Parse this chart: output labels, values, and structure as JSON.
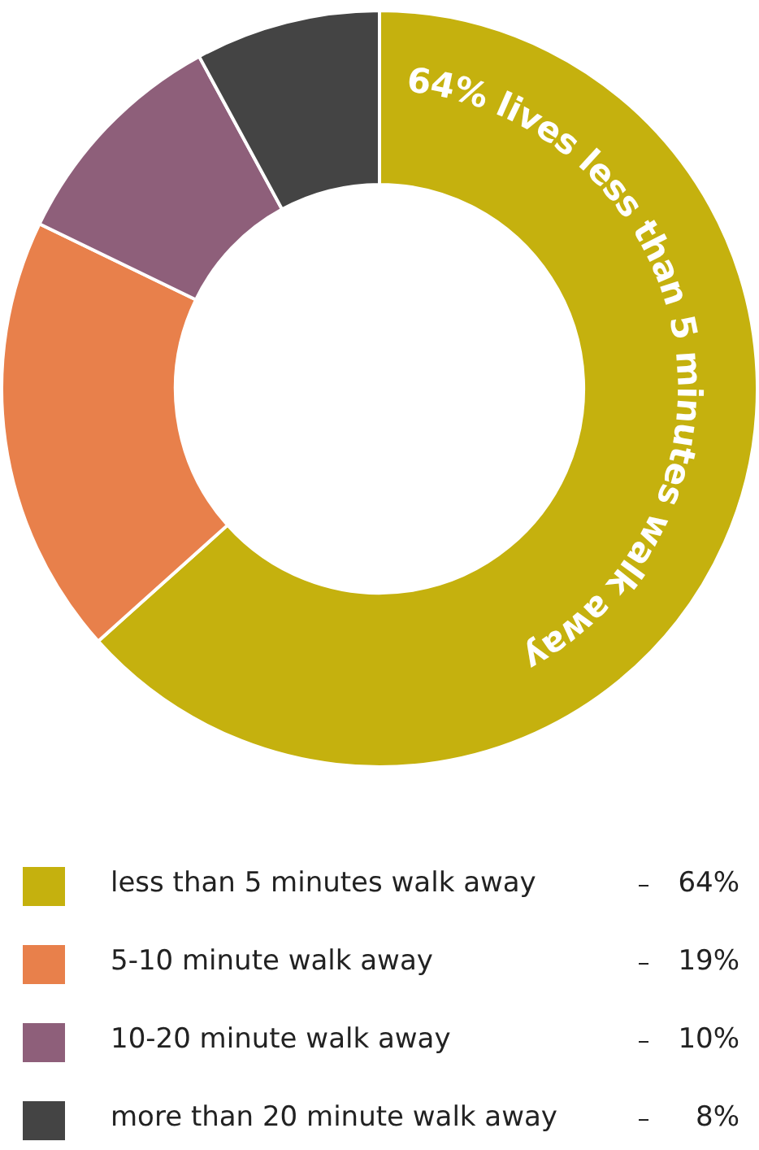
{
  "chart_data": {
    "type": "donut",
    "categories": [
      "less than 5 minutes walk away",
      "5-10 minute walk away",
      "10-20 minute walk away",
      "more than 20 minute walk away"
    ],
    "values": [
      64,
      19,
      10,
      8
    ],
    "colors": [
      "#c5b10e",
      "#e8804b",
      "#8e5f7a",
      "#444444"
    ],
    "value_labels": [
      "64%",
      "19%",
      "10%",
      "8%"
    ],
    "legend": "bottom",
    "annotations": [
      "64% lives less than 5 minutes walk away"
    ]
  }
}
